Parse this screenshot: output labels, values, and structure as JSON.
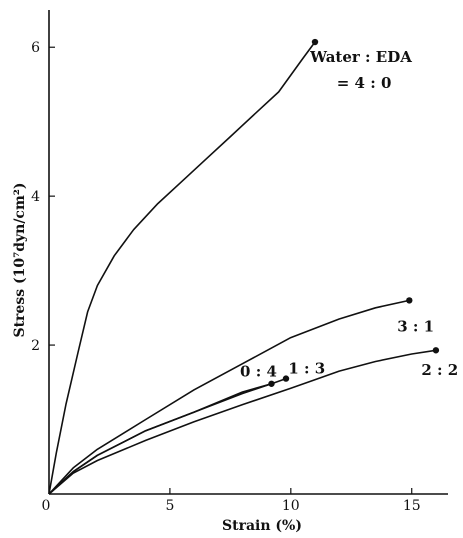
{
  "chart_data": {
    "type": "line",
    "xlabel": "Strain (%)",
    "ylabel": "Stress (10⁷dyn/cm²)",
    "xlim": [
      0,
      16.5
    ],
    "ylim": [
      0,
      6.5
    ],
    "x_ticks": [
      0,
      5,
      10,
      15
    ],
    "y_ticks": [
      2,
      4,
      6
    ],
    "grid": false,
    "legend": "none",
    "legend_title": "Water : EDA",
    "series": [
      {
        "name": "= 4 : 0",
        "points": [
          [
            0,
            0
          ],
          [
            0.3,
            0.55
          ],
          [
            0.7,
            1.2
          ],
          [
            1.2,
            1.9
          ],
          [
            1.6,
            2.45
          ],
          [
            2.0,
            2.8
          ],
          [
            2.7,
            3.2
          ],
          [
            3.5,
            3.55
          ],
          [
            4.5,
            3.9
          ],
          [
            5.5,
            4.2
          ],
          [
            6.5,
            4.5
          ],
          [
            7.5,
            4.8
          ],
          [
            8.5,
            5.1
          ],
          [
            9.5,
            5.4
          ],
          [
            10.5,
            5.85
          ],
          [
            11.0,
            6.07
          ]
        ],
        "end_marker": true
      },
      {
        "name": "3 : 1",
        "points": [
          [
            0,
            0
          ],
          [
            1,
            0.35
          ],
          [
            2,
            0.6
          ],
          [
            4,
            1.0
          ],
          [
            6,
            1.4
          ],
          [
            8,
            1.75
          ],
          [
            10,
            2.1
          ],
          [
            12,
            2.35
          ],
          [
            13.5,
            2.5
          ],
          [
            14.9,
            2.6
          ]
        ],
        "end_marker": true
      },
      {
        "name": "2 : 2",
        "points": [
          [
            0,
            0
          ],
          [
            1,
            0.28
          ],
          [
            2,
            0.45
          ],
          [
            4,
            0.72
          ],
          [
            6,
            0.97
          ],
          [
            8,
            1.2
          ],
          [
            10,
            1.42
          ],
          [
            12,
            1.65
          ],
          [
            13.5,
            1.78
          ],
          [
            15,
            1.88
          ],
          [
            16,
            1.93
          ]
        ],
        "end_marker": true
      },
      {
        "name": "1 : 3",
        "points": [
          [
            0,
            0
          ],
          [
            1,
            0.3
          ],
          [
            2,
            0.52
          ],
          [
            4,
            0.85
          ],
          [
            6,
            1.1
          ],
          [
            8,
            1.37
          ],
          [
            9.2,
            1.48
          ],
          [
            9.8,
            1.55
          ]
        ],
        "end_marker": true
      },
      {
        "name": "0 : 4",
        "points": [
          [
            0,
            0
          ],
          [
            1,
            0.3
          ],
          [
            2,
            0.52
          ],
          [
            4,
            0.85
          ],
          [
            6,
            1.1
          ],
          [
            8,
            1.35
          ],
          [
            9.2,
            1.48
          ]
        ],
        "end_marker": true
      }
    ]
  }
}
